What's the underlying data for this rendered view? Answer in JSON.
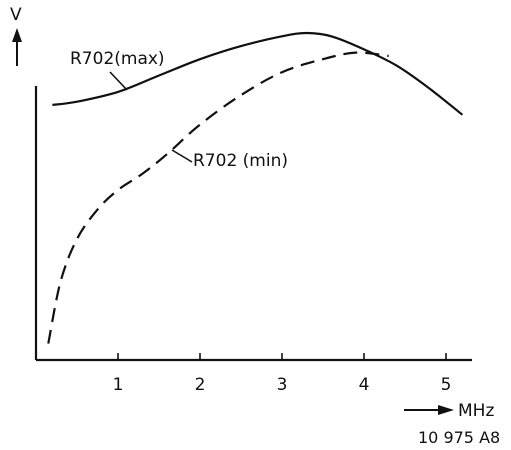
{
  "chart_data": {
    "type": "line",
    "title": "",
    "xlabel": "MHz",
    "ylabel": "V",
    "xlim": [
      0,
      5.3
    ],
    "ylim": [
      0,
      1.0
    ],
    "x_ticks": [
      "1",
      "2",
      "3",
      "4",
      "5"
    ],
    "y_ticks": [],
    "grid": false,
    "figure_id": "10 975 A8",
    "series": [
      {
        "name": "R702(max)",
        "style": "solid",
        "color": "#111111",
        "x": [
          0.2,
          0.5,
          1.0,
          1.5,
          2.0,
          2.5,
          3.0,
          3.3,
          3.6,
          4.0,
          4.4,
          4.8,
          5.2
        ],
        "y": [
          0.78,
          0.79,
          0.82,
          0.87,
          0.92,
          0.96,
          0.99,
          1.0,
          0.99,
          0.95,
          0.9,
          0.83,
          0.75
        ]
      },
      {
        "name": "R702 (min)",
        "style": "dashed",
        "color": "#111111",
        "x": [
          0.15,
          0.3,
          0.5,
          0.75,
          1.0,
          1.3,
          1.6,
          2.0,
          2.5,
          3.0,
          3.5,
          3.9,
          4.3
        ],
        "y": [
          0.05,
          0.24,
          0.37,
          0.46,
          0.52,
          0.57,
          0.63,
          0.72,
          0.81,
          0.88,
          0.92,
          0.94,
          0.93
        ]
      }
    ]
  }
}
